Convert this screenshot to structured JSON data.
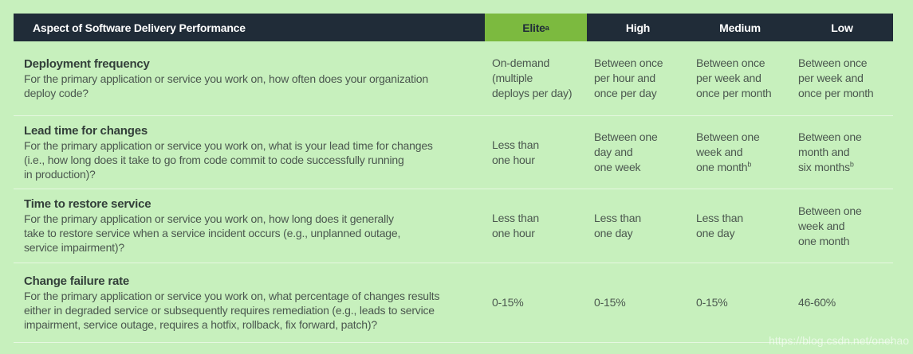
{
  "watermark": "https://blog.csdn.net/onehao",
  "colors": {
    "background": "#c7f0bd",
    "header_bg": "#202c38",
    "elite_bg": "#7cba3f",
    "header_text": "#ffffff",
    "title_text": "#333f3a",
    "body_text": "#4b574f"
  },
  "table": {
    "aspect_header": "Aspect of Software Delivery Performance",
    "level_headers": [
      {
        "label": "Elite",
        "sup": "a",
        "highlight": true
      },
      {
        "label": "High",
        "sup": "",
        "highlight": false
      },
      {
        "label": "Medium",
        "sup": "",
        "highlight": false
      },
      {
        "label": "Low",
        "sup": "",
        "highlight": false
      }
    ],
    "rows": [
      {
        "title": "Deployment frequency",
        "description": [
          "For the primary application or service you work on, how often does your organization",
          "deploy code?"
        ],
        "values": [
          {
            "lines": [
              "On-demand",
              "(multiple",
              "deploys per day)"
            ],
            "sup": ""
          },
          {
            "lines": [
              "Between once",
              "per hour and",
              "once per day"
            ],
            "sup": ""
          },
          {
            "lines": [
              "Between once",
              "per week and",
              "once per month"
            ],
            "sup": ""
          },
          {
            "lines": [
              "Between once",
              "per week and",
              "once per month"
            ],
            "sup": ""
          }
        ]
      },
      {
        "title": "Lead time for changes",
        "description": [
          "For the primary application or service you work on, what is your lead time for changes",
          "(i.e., how long does it take to go from code commit to code successfully running",
          "in production)?"
        ],
        "values": [
          {
            "lines": [
              "Less than",
              "one hour"
            ],
            "sup": ""
          },
          {
            "lines": [
              "Between one",
              "day and",
              "one week"
            ],
            "sup": ""
          },
          {
            "lines": [
              "Between one",
              "week and",
              "one month"
            ],
            "sup": "b"
          },
          {
            "lines": [
              "Between one",
              "month and",
              "six months"
            ],
            "sup": "b"
          }
        ]
      },
      {
        "title": "Time to restore service",
        "description": [
          "For the primary application or service you work on, how long does it generally",
          "take to restore service when a service incident occurs (e.g., unplanned outage,",
          "service impairment)?"
        ],
        "values": [
          {
            "lines": [
              "Less than",
              "one hour"
            ],
            "sup": ""
          },
          {
            "lines": [
              "Less than",
              "one day"
            ],
            "sup": ""
          },
          {
            "lines": [
              "Less than",
              "one day"
            ],
            "sup": ""
          },
          {
            "lines": [
              "Between one",
              "week and",
              "one month"
            ],
            "sup": ""
          }
        ]
      },
      {
        "title": "Change failure rate",
        "description": [
          "For the primary application or service you work on, what percentage of changes results",
          "either in degraded service or subsequently requires remediation (e.g., leads to service",
          "impairment, service outage, requires a hotfix, rollback, fix forward, patch)?"
        ],
        "values": [
          {
            "lines": [
              "0-15%"
            ],
            "sup": ""
          },
          {
            "lines": [
              "0-15%"
            ],
            "sup": ""
          },
          {
            "lines": [
              "0-15%"
            ],
            "sup": ""
          },
          {
            "lines": [
              "46-60%"
            ],
            "sup": ""
          }
        ]
      }
    ]
  }
}
